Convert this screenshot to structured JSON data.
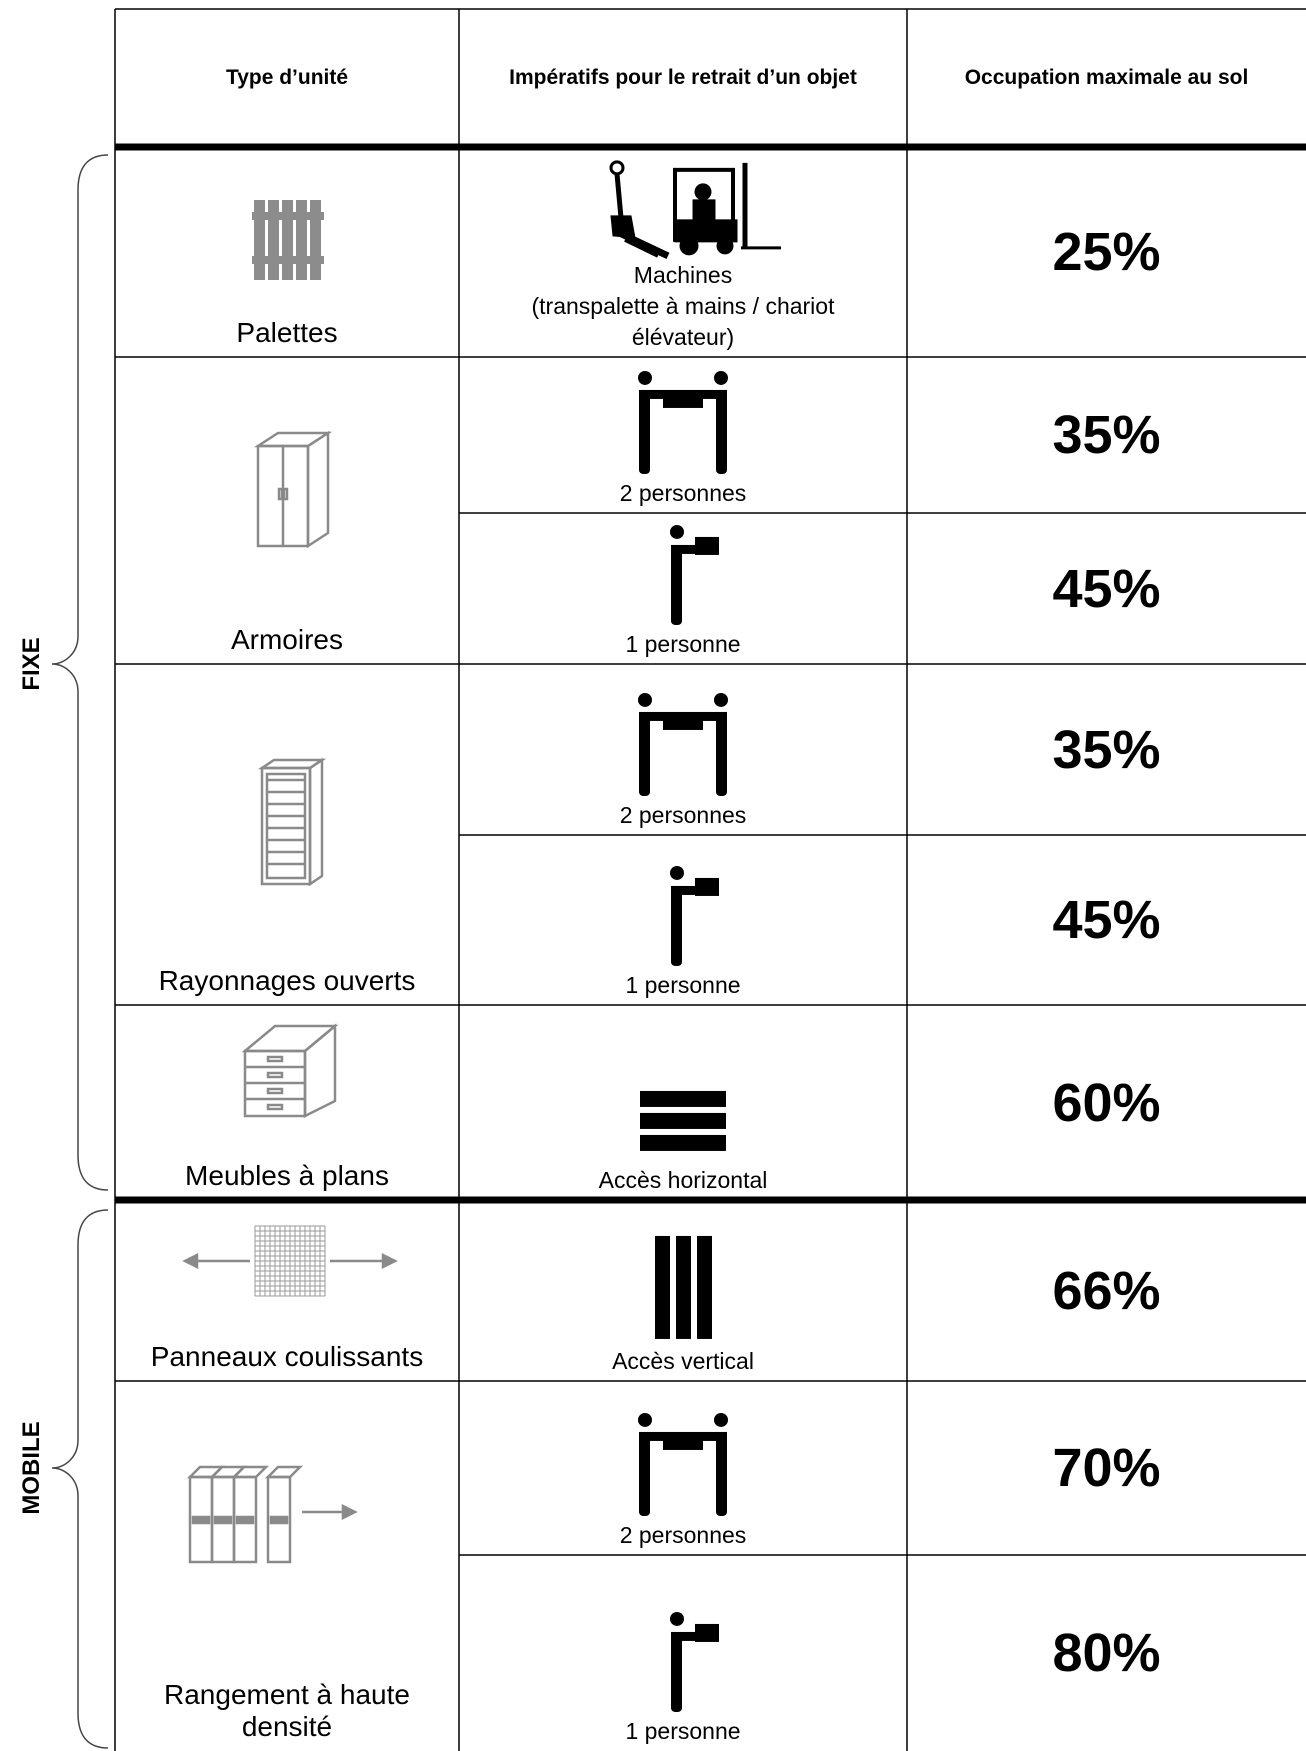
{
  "table": {
    "headers": [
      "Type d’unité",
      "Impératifs pour le retrait d’un objet",
      "Occupation maximale au sol"
    ],
    "groups": [
      {
        "label": "FIXE",
        "units": [
          {
            "name": "Palettes",
            "options": [
              {
                "requirement": "Machines\n(transpalette à mains / chariot élévateur)",
                "occupancy": "25%"
              }
            ]
          },
          {
            "name": "Armoires",
            "options": [
              {
                "requirement": "2 personnes",
                "occupancy": "35%"
              },
              {
                "requirement": "1 personne",
                "occupancy": "45%"
              }
            ]
          },
          {
            "name": "Rayonnages ouverts",
            "options": [
              {
                "requirement": "2 personnes",
                "occupancy": "35%"
              },
              {
                "requirement": "1 personne",
                "occupancy": "45%"
              }
            ]
          },
          {
            "name": "Meubles à plans",
            "options": [
              {
                "requirement": "Accès horizontal",
                "occupancy": "60%"
              }
            ]
          }
        ]
      },
      {
        "label": "MOBILE",
        "units": [
          {
            "name": "Panneaux coulissants",
            "options": [
              {
                "requirement": "Accès vertical",
                "occupancy": "66%"
              }
            ]
          },
          {
            "name": "Rangement à haute densité",
            "options": [
              {
                "requirement": "2 personnes",
                "occupancy": "70%"
              },
              {
                "requirement": "1 personne",
                "occupancy": "80%"
              }
            ]
          }
        ]
      }
    ]
  }
}
